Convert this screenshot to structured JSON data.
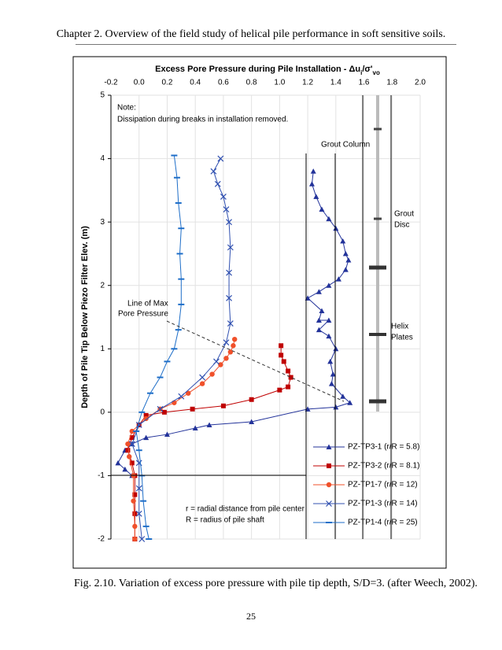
{
  "header": "Chapter 2.   Overview of the field study of helical pile performance in soft sensitive soils.",
  "chart_data": {
    "type": "scatter",
    "title": [
      "Excess Pore Pressure during Pile Installation - Δu",
      "i",
      "/σ'",
      "vo"
    ],
    "y_label": "Depth of Pile Tip Below Piezo Filter Elev. (m)",
    "xlim": [
      -0.2,
      2.0
    ],
    "xticks": [
      -0.2,
      {
        "value": 0,
        "label": "0.0"
      },
      0.2,
      0.4,
      0.6,
      0.8,
      {
        "value": 1,
        "label": "1.0"
      },
      1.2,
      1.4,
      1.6,
      1.8,
      {
        "value": 2,
        "label": "2.0"
      }
    ],
    "ylim": [
      -2,
      5
    ],
    "yticks": [
      -2,
      -1,
      0,
      1,
      2,
      3,
      4,
      5
    ],
    "grid": true,
    "annotations": [
      "Note:",
      "Dissipation during breaks in installation removed.",
      "Grout Column",
      "Grout",
      "Disc",
      "Helix",
      "Plates",
      "Line of Max",
      "Pore Pressure",
      "r = radial distance from pile center",
      "R = radius of pile shaft"
    ],
    "series": [
      {
        "name": "PZ-TP3-1 (r/R = 5.8)",
        "color": "#23339a",
        "marker": "triangle",
        "x": [
          1.24,
          1.23,
          1.26,
          1.3,
          1.35,
          1.4,
          1.45,
          1.47,
          1.49,
          1.47,
          1.42,
          1.35,
          1.28,
          1.2,
          1.3,
          1.28,
          1.35,
          1.28,
          1.35,
          1.4,
          1.36,
          1.38,
          1.37,
          1.45,
          1.5,
          1.4,
          1.2,
          0.8,
          0.5,
          0.4,
          0.2,
          0.05,
          -0.05,
          -0.1,
          -0.15,
          -0.1,
          -0.05
        ],
        "y": [
          3.8,
          3.6,
          3.4,
          3.2,
          3.05,
          2.9,
          2.7,
          2.5,
          2.4,
          2.25,
          2.1,
          2.0,
          1.9,
          1.8,
          1.6,
          1.45,
          1.45,
          1.3,
          1.2,
          1.0,
          0.8,
          0.6,
          0.45,
          0.25,
          0.15,
          0.08,
          0.05,
          -0.15,
          -0.2,
          -0.25,
          -0.35,
          -0.4,
          -0.5,
          -0.6,
          -0.8,
          -0.9,
          -1.0
        ]
      },
      {
        "name": "PZ-TP3-2 (r/R = 8.1)",
        "color": "#c00000",
        "marker": "square",
        "x": [
          1.01,
          1.01,
          1.03,
          1.06,
          1.08,
          1.06,
          1.0,
          0.8,
          0.6,
          0.38,
          0.18,
          0.05,
          0.0,
          -0.05,
          -0.08,
          -0.05,
          -0.03,
          -0.03,
          -0.03,
          -0.03
        ],
        "y": [
          1.05,
          0.9,
          0.8,
          0.65,
          0.55,
          0.4,
          0.35,
          0.2,
          0.1,
          0.05,
          0.0,
          -0.05,
          -0.2,
          -0.4,
          -0.6,
          -0.8,
          -1.0,
          -1.3,
          -1.6,
          -2.0
        ]
      },
      {
        "name": "PZ-TP1-7 (r/R = 12)",
        "color": "#f0502a",
        "marker": "circle",
        "x": [
          0.68,
          0.67,
          0.65,
          0.62,
          0.58,
          0.52,
          0.45,
          0.35,
          0.25,
          0.15,
          0.05,
          -0.05,
          -0.08,
          -0.07,
          -0.04,
          -0.04,
          -0.03,
          -0.03
        ],
        "y": [
          1.15,
          1.05,
          0.95,
          0.85,
          0.75,
          0.6,
          0.45,
          0.3,
          0.15,
          0.05,
          -0.1,
          -0.3,
          -0.5,
          -0.7,
          -1.0,
          -1.4,
          -1.8,
          -2.0
        ]
      },
      {
        "name": "PZ-TP1-3 (r/R = 14)",
        "color": "#3050b0",
        "marker": "cross",
        "x": [
          0.58,
          0.53,
          0.56,
          0.6,
          0.62,
          0.64,
          0.65,
          0.64,
          0.64,
          0.65,
          0.62,
          0.55,
          0.45,
          0.3,
          0.15,
          0.0,
          -0.05,
          0.0,
          0.0,
          0.0,
          0.02
        ],
        "y": [
          4.0,
          3.8,
          3.6,
          3.4,
          3.2,
          3.0,
          2.6,
          2.2,
          1.8,
          1.4,
          1.1,
          0.8,
          0.55,
          0.25,
          0.05,
          -0.2,
          -0.5,
          -0.8,
          -1.2,
          -1.6,
          -2.0
        ]
      },
      {
        "name": "PZ-TP1-4 (r/R = 25)",
        "color": "#1e6ec8",
        "marker": "dash",
        "x": [
          0.25,
          0.27,
          0.28,
          0.3,
          0.29,
          0.3,
          0.3,
          0.28,
          0.25,
          0.2,
          0.15,
          0.08,
          0.02,
          -0.02,
          0.0,
          0.02,
          0.03,
          0.05,
          0.07
        ],
        "y": [
          4.05,
          3.7,
          3.3,
          2.9,
          2.5,
          2.1,
          1.7,
          1.3,
          1.0,
          0.8,
          0.55,
          0.3,
          0.0,
          -0.3,
          -0.6,
          -1.0,
          -1.4,
          -1.8,
          -2.0
        ]
      }
    ]
  },
  "caption": "Fig. 2.10.   Variation of excess pore pressure with pile tip depth, S/D=3. (after Weech, 2002).",
  "page_number": "25"
}
